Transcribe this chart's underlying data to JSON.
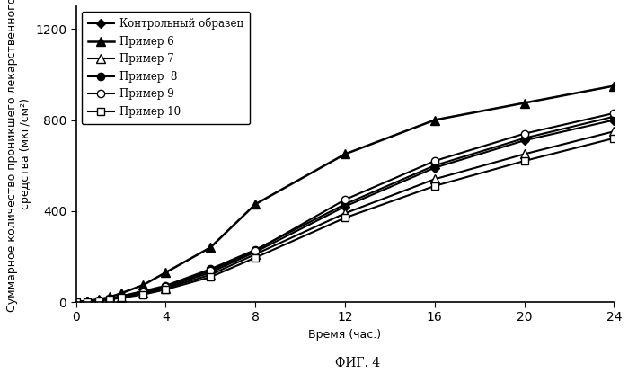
{
  "xlabel": "Время (час.)",
  "ylabel_line1": "Суммарное количество проникшего лекарственного",
  "ylabel_line2": "средства (мкг/см²)",
  "fig_label": "ФИГ. 4",
  "xlim": [
    0,
    24
  ],
  "ylim": [
    0,
    1300
  ],
  "xticks": [
    0,
    4,
    8,
    12,
    16,
    20,
    24
  ],
  "yticks": [
    0,
    400,
    800,
    1200
  ],
  "series": [
    {
      "label": "Контрольный образец",
      "x": [
        0,
        0.5,
        1,
        1.5,
        2,
        3,
        4,
        6,
        8,
        12,
        16,
        20,
        24
      ],
      "y": [
        0,
        3,
        8,
        14,
        22,
        42,
        65,
        130,
        220,
        420,
        590,
        710,
        800
      ],
      "marker": "D",
      "markersize": 5,
      "linewidth": 1.5,
      "fillstyle": "full"
    },
    {
      "label": "Пример 6",
      "x": [
        0,
        0.5,
        1,
        1.5,
        2,
        3,
        4,
        6,
        8,
        12,
        16,
        20,
        24
      ],
      "y": [
        0,
        5,
        12,
        22,
        38,
        75,
        130,
        240,
        430,
        650,
        800,
        875,
        950
      ],
      "marker": "^",
      "markersize": 7,
      "linewidth": 1.8,
      "fillstyle": "full"
    },
    {
      "label": "Пример 7",
      "x": [
        0,
        0.5,
        1,
        1.5,
        2,
        3,
        4,
        6,
        8,
        12,
        16,
        20,
        24
      ],
      "y": [
        0,
        3,
        7,
        13,
        20,
        38,
        60,
        120,
        210,
        390,
        540,
        650,
        750
      ],
      "marker": "^",
      "markersize": 7,
      "linewidth": 1.5,
      "fillstyle": "none"
    },
    {
      "label": "Пример  8",
      "x": [
        0,
        0.5,
        1,
        1.5,
        2,
        3,
        4,
        6,
        8,
        12,
        16,
        20,
        24
      ],
      "y": [
        0,
        4,
        9,
        16,
        26,
        48,
        72,
        145,
        230,
        430,
        600,
        720,
        815
      ],
      "marker": "o",
      "markersize": 6,
      "linewidth": 1.5,
      "fillstyle": "full"
    },
    {
      "label": "Пример 9",
      "x": [
        0,
        0.5,
        1,
        1.5,
        2,
        3,
        4,
        6,
        8,
        12,
        16,
        20,
        24
      ],
      "y": [
        0,
        4,
        8,
        15,
        24,
        44,
        68,
        138,
        225,
        450,
        620,
        740,
        830
      ],
      "marker": "o",
      "markersize": 6,
      "linewidth": 1.5,
      "fillstyle": "none"
    },
    {
      "label": "Пример 10",
      "x": [
        0,
        0.5,
        1,
        1.5,
        2,
        3,
        4,
        6,
        8,
        12,
        16,
        20,
        24
      ],
      "y": [
        0,
        2,
        6,
        11,
        18,
        33,
        55,
        110,
        195,
        370,
        510,
        620,
        720
      ],
      "marker": "s",
      "markersize": 6,
      "linewidth": 1.5,
      "fillstyle": "none"
    }
  ],
  "background_color": "#ffffff",
  "legend_fontsize": 8.5,
  "axis_fontsize": 9,
  "tick_fontsize": 10
}
